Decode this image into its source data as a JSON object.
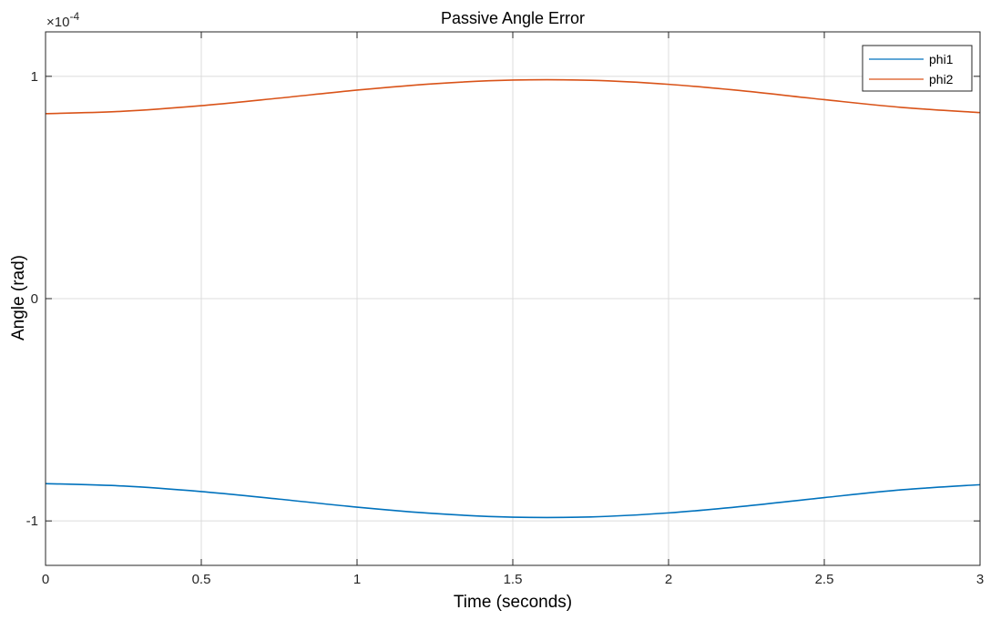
{
  "chart_data": {
    "type": "line",
    "title": "Passive Angle Error",
    "xlabel": "Time (seconds)",
    "ylabel": "Angle (rad)",
    "y_exponent": {
      "base": "×10",
      "power": "-4"
    },
    "xlim": [
      0,
      3
    ],
    "ylim": [
      -1.2,
      1.2
    ],
    "xticks": [
      {
        "value": 0,
        "label": "0"
      },
      {
        "value": 0.5,
        "label": "0.5"
      },
      {
        "value": 1,
        "label": "1"
      },
      {
        "value": 1.5,
        "label": "1.5"
      },
      {
        "value": 2,
        "label": "2"
      },
      {
        "value": 2.5,
        "label": "2.5"
      },
      {
        "value": 3,
        "label": "3"
      }
    ],
    "yticks": [
      {
        "value": -1,
        "label": "-1"
      },
      {
        "value": 0,
        "label": "0"
      },
      {
        "value": 1,
        "label": "1"
      }
    ],
    "grid": true,
    "legend_position": "top-right",
    "x": [
      0,
      0.25,
      0.5,
      0.75,
      1.0,
      1.25,
      1.5,
      1.75,
      2.0,
      2.25,
      2.5,
      2.75,
      3.0
    ],
    "series": [
      {
        "name": "phi1",
        "color": "#0072BD",
        "values": [
          -0.832,
          -0.843,
          -0.868,
          -0.902,
          -0.938,
          -0.967,
          -0.983,
          -0.982,
          -0.964,
          -0.933,
          -0.895,
          -0.86,
          -0.837
        ]
      },
      {
        "name": "phi2",
        "color": "#D95319",
        "values": [
          0.832,
          0.843,
          0.868,
          0.902,
          0.938,
          0.967,
          0.983,
          0.982,
          0.964,
          0.933,
          0.895,
          0.86,
          0.837
        ]
      }
    ]
  }
}
